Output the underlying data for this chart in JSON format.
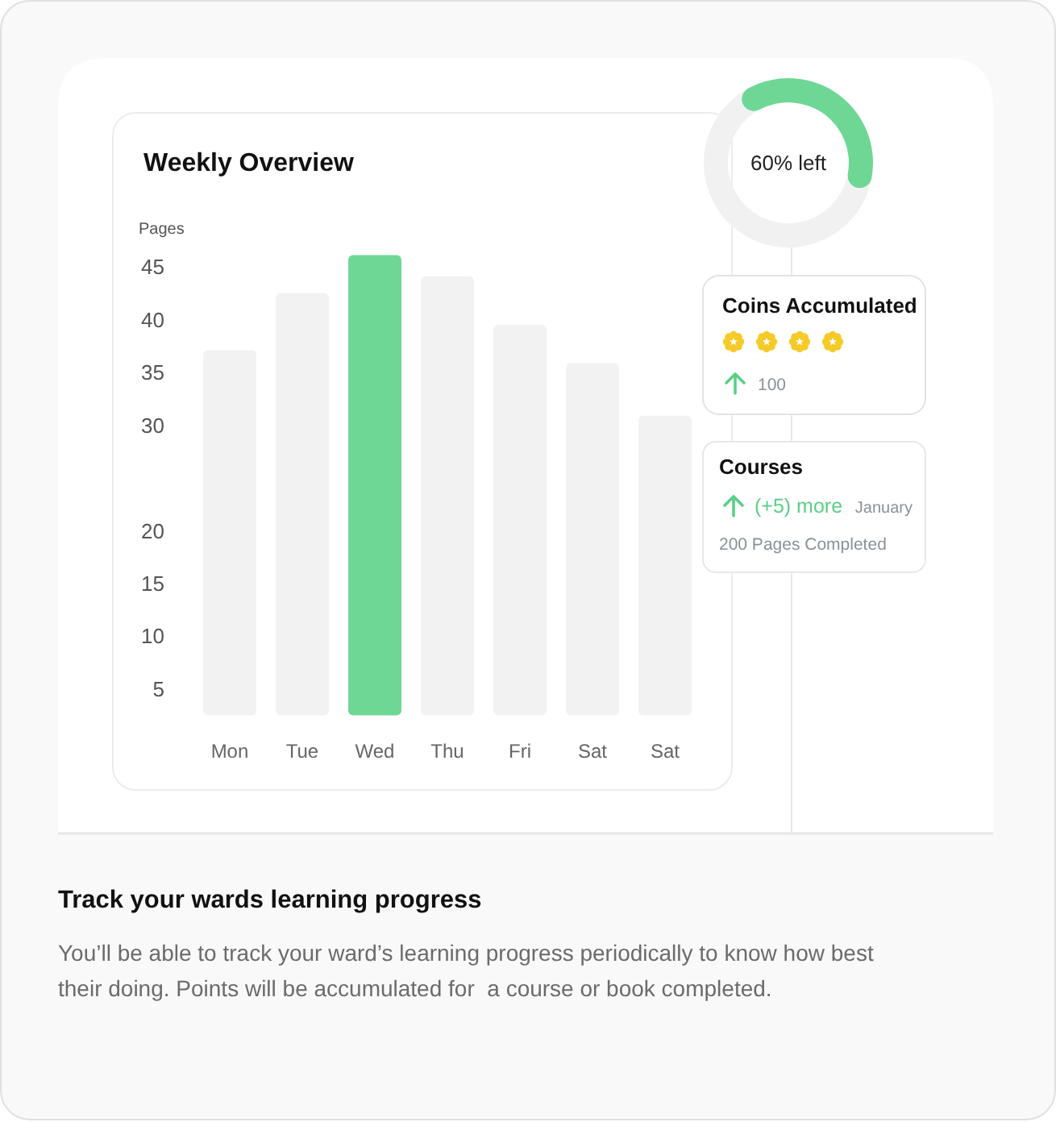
{
  "chart_data": [
    {
      "type": "bar",
      "title": "Weekly Overview",
      "ylabel": "Pages",
      "categories": [
        "Mon",
        "Tue",
        "Wed",
        "Thu",
        "Fri",
        "Sat",
        "Sat"
      ],
      "values": [
        37.1,
        42.5,
        46.1,
        44.1,
        39.5,
        35.9,
        30.9
      ],
      "colors": [
        "#f2f2f2",
        "#f2f2f2",
        "#6fd795",
        "#f2f2f2",
        "#f2f2f2",
        "#f2f2f2",
        "#f2f2f2"
      ],
      "ylim": [
        2.5,
        46.1
      ],
      "yticks": [
        5,
        10,
        15,
        20,
        30,
        35,
        40,
        45
      ]
    },
    {
      "type": "donut",
      "categories": [
        null,
        null
      ],
      "values": [
        40,
        60
      ],
      "colors": [
        "#6fd795",
        "#f1f1f1"
      ],
      "annotations": [
        "60% left"
      ]
    },
    {
      "type": "other",
      "title": "Coins Accumulated",
      "annotations": [
        "100"
      ]
    },
    {
      "type": "other",
      "title": "Courses",
      "annotations": [
        "(+5) more",
        "January",
        "200 Pages Completed"
      ]
    },
    {
      "type": "other",
      "title": "Track your wards learning progress",
      "annotations": [
        "You’ll be able to track your ward’s learning progress periodically to know how best their doing. Points will be accumulated for  a course or book completed."
      ]
    }
  ]
}
